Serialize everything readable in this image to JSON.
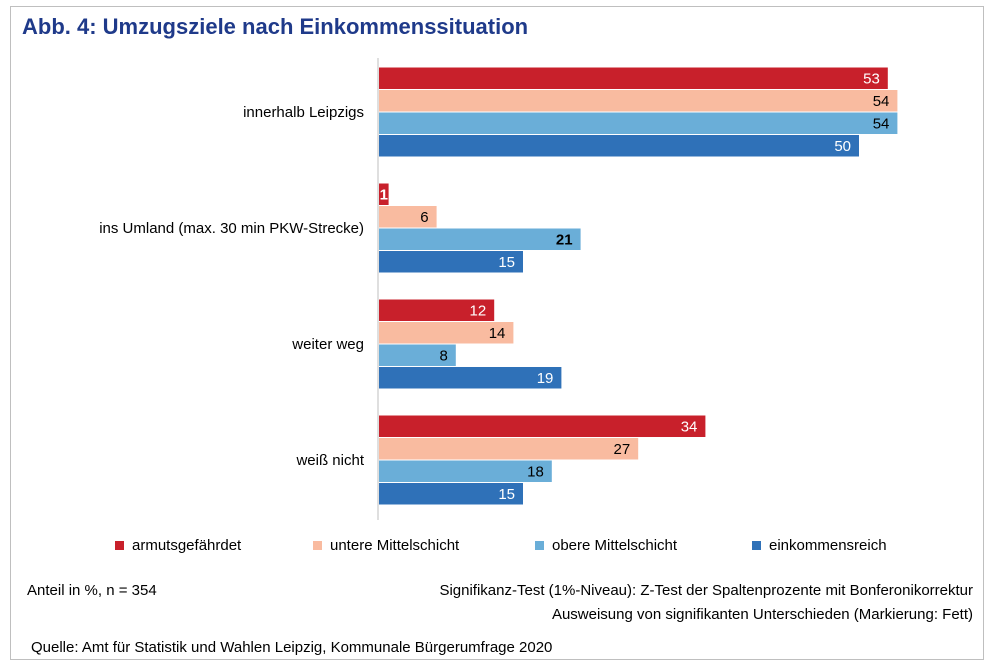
{
  "title": "Abb. 4: Umzugsziele nach Einkommenssituation",
  "chart_data": {
    "type": "bar",
    "orientation": "horizontal",
    "categories": [
      "innerhalb Leipzigs",
      "ins Umland (max. 30 min PKW-Strecke)",
      "weiter weg",
      "weiß nicht"
    ],
    "series": [
      {
        "name": "armutsgefährdet",
        "color": "#c8202b",
        "values": [
          53,
          1,
          12,
          34
        ],
        "bold": [
          false,
          true,
          false,
          false
        ]
      },
      {
        "name": "untere Mittelschicht",
        "color": "#f9bba0",
        "values": [
          54,
          6,
          14,
          27
        ],
        "bold": [
          false,
          false,
          false,
          false
        ]
      },
      {
        "name": "obere Mittelschicht",
        "color": "#6aaed8",
        "values": [
          54,
          21,
          8,
          18
        ],
        "bold": [
          false,
          true,
          false,
          false
        ]
      },
      {
        "name": "einkommensreich",
        "color": "#2f71b8",
        "values": [
          50,
          15,
          19,
          15
        ],
        "bold": [
          false,
          false,
          false,
          false
        ]
      }
    ],
    "xlim": [
      0,
      60
    ],
    "grid": false,
    "legend_position": "bottom"
  },
  "notes": {
    "sample": "Anteil in %, n = 354",
    "test_line1": "Signifikanz-Test (1%-Niveau): Z-Test der Spaltenprozente mit Bonferonikorrektur",
    "test_line2": "Ausweisung von signifikanten Unterschieden (Markierung: Fett)",
    "source": "Quelle: Amt für Statistik und Wahlen Leipzig, Kommunale Bürgerumfrage 2020"
  }
}
